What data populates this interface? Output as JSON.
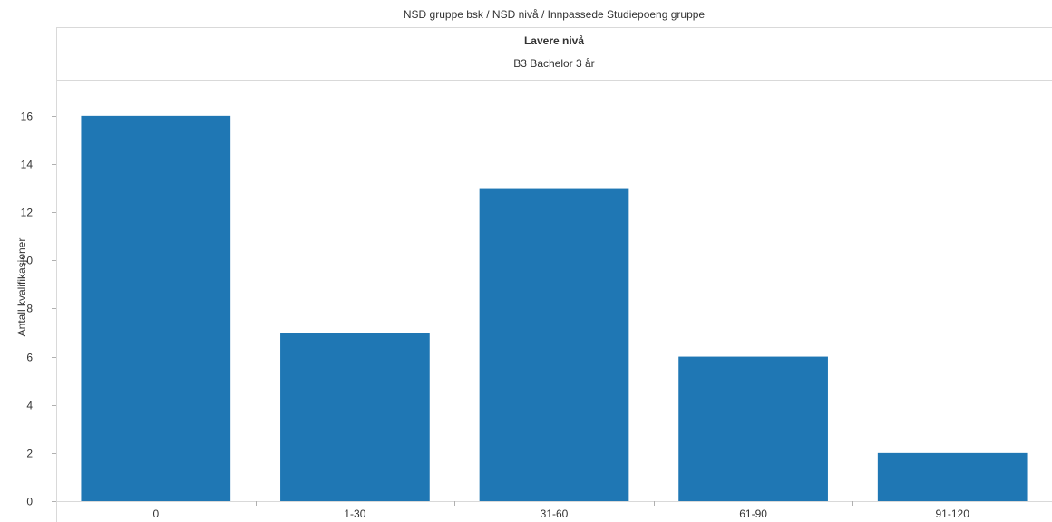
{
  "header": {
    "path": "NSD gruppe bsk  /  NSD nivå  /  Innpassede Studiepoeng gruppe",
    "level": "Lavere nivå",
    "subgroup": "B3 Bachelor 3 år"
  },
  "colors": {
    "bar": "#1f77b4",
    "axis": "#d9d9d9",
    "tick": "#b0b0b0",
    "text": "#333333"
  },
  "chart_data": {
    "type": "bar",
    "title": "",
    "xlabel": "",
    "ylabel": "Antall kvalifikasjoner",
    "categories": [
      "0",
      "1-30",
      "31-60",
      "61-90",
      "91-120"
    ],
    "values": [
      16,
      7,
      13,
      6,
      2
    ],
    "ylim": [
      0,
      17.5
    ],
    "yticks": [
      0,
      2,
      4,
      6,
      8,
      10,
      12,
      14,
      16
    ],
    "grid": false,
    "legend": "none"
  }
}
